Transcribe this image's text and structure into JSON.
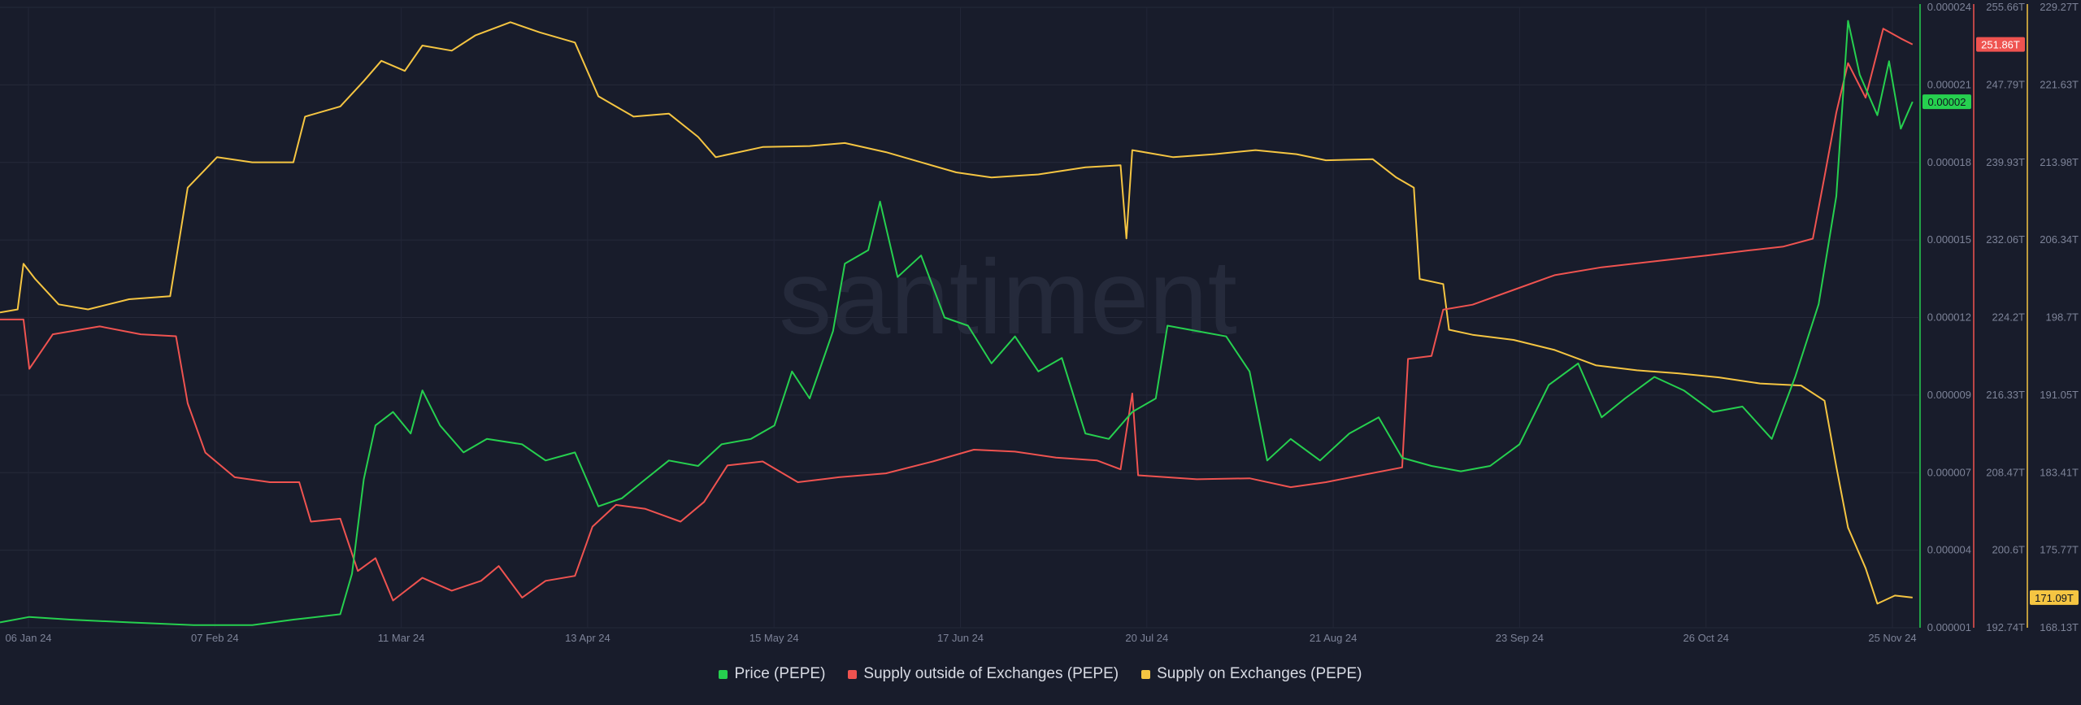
{
  "watermark": "santiment",
  "legend": {
    "items": [
      {
        "label": "Price (PEPE)",
        "color": "#26d04f"
      },
      {
        "label": "Supply outside of Exchanges (PEPE)",
        "color": "#ef5350"
      },
      {
        "label": "Supply on Exchanges (PEPE)",
        "color": "#f5c542"
      }
    ]
  },
  "chart_data": {
    "type": "line",
    "x_tick_labels": [
      "06 Jan 24",
      "07 Feb 24",
      "11 Mar 24",
      "13 Apr 24",
      "15 May 24",
      "17 Jun 24",
      "20 Jul 24",
      "21 Aug 24",
      "23 Sep 24",
      "26 Oct 24",
      "25 Nov 24"
    ],
    "xlim": [
      "2024-01-03",
      "2024-11-25"
    ],
    "grid": true,
    "legend_position": "bottom-center",
    "axes": [
      {
        "id": "price",
        "color": "#26d04f",
        "ylim": [
          1e-06,
          2.4e-05
        ],
        "tick_labels": [
          "0.000024",
          "0.000021",
          "0.000018",
          "0.000015",
          "0.000012",
          "0.000009",
          "0.000007",
          "0.000004",
          "0.000001"
        ],
        "last_value_label": "0.00002"
      },
      {
        "id": "supply_outside",
        "color": "#ef5350",
        "ylim": [
          192.74,
          255.66
        ],
        "unit": "T",
        "tick_labels": [
          "255.66T",
          "247.79T",
          "239.93T",
          "232.06T",
          "224.2T",
          "216.33T",
          "208.47T",
          "200.6T",
          "192.74T"
        ],
        "last_value_label": "251.86T"
      },
      {
        "id": "supply_on",
        "color": "#f5c542",
        "ylim": [
          168.13,
          229.27
        ],
        "unit": "T",
        "tick_labels": [
          "229.27T",
          "221.63T",
          "213.98T",
          "206.34T",
          "198.7T",
          "191.05T",
          "183.41T",
          "175.77T",
          "168.13T"
        ],
        "last_value_label": "171.09T"
      }
    ],
    "series": [
      {
        "name": "Price (PEPE)",
        "axis": "price",
        "color": "#26d04f",
        "points": [
          [
            "2024-01-03",
            1.2e-06
          ],
          [
            "2024-01-08",
            1.4e-06
          ],
          [
            "2024-01-15",
            1.3e-06
          ],
          [
            "2024-01-25",
            1.2e-06
          ],
          [
            "2024-02-05",
            1.1e-06
          ],
          [
            "2024-02-15",
            1.1e-06
          ],
          [
            "2024-02-22",
            1.3e-06
          ],
          [
            "2024-03-01",
            1.5e-06
          ],
          [
            "2024-03-03",
            3e-06
          ],
          [
            "2024-03-05",
            6.5e-06
          ],
          [
            "2024-03-07",
            8.5e-06
          ],
          [
            "2024-03-10",
            9e-06
          ],
          [
            "2024-03-13",
            8.2e-06
          ],
          [
            "2024-03-15",
            9.8e-06
          ],
          [
            "2024-03-18",
            8.5e-06
          ],
          [
            "2024-03-22",
            7.5e-06
          ],
          [
            "2024-03-26",
            8e-06
          ],
          [
            "2024-04-01",
            7.8e-06
          ],
          [
            "2024-04-05",
            7.2e-06
          ],
          [
            "2024-04-10",
            7.5e-06
          ],
          [
            "2024-04-14",
            5.5e-06
          ],
          [
            "2024-04-18",
            5.8e-06
          ],
          [
            "2024-04-22",
            6.5e-06
          ],
          [
            "2024-04-26",
            7.2e-06
          ],
          [
            "2024-05-01",
            7e-06
          ],
          [
            "2024-05-05",
            7.8e-06
          ],
          [
            "2024-05-10",
            8e-06
          ],
          [
            "2024-05-14",
            8.5e-06
          ],
          [
            "2024-05-17",
            1.05e-05
          ],
          [
            "2024-05-20",
            9.5e-06
          ],
          [
            "2024-05-24",
            1.2e-05
          ],
          [
            "2024-05-26",
            1.45e-05
          ],
          [
            "2024-05-30",
            1.5e-05
          ],
          [
            "2024-06-01",
            1.68e-05
          ],
          [
            "2024-06-04",
            1.4e-05
          ],
          [
            "2024-06-08",
            1.48e-05
          ],
          [
            "2024-06-12",
            1.25e-05
          ],
          [
            "2024-06-16",
            1.22e-05
          ],
          [
            "2024-06-20",
            1.08e-05
          ],
          [
            "2024-06-24",
            1.18e-05
          ],
          [
            "2024-06-28",
            1.05e-05
          ],
          [
            "2024-07-02",
            1.1e-05
          ],
          [
            "2024-07-06",
            8.2e-06
          ],
          [
            "2024-07-10",
            8e-06
          ],
          [
            "2024-07-14",
            9e-06
          ],
          [
            "2024-07-18",
            9.5e-06
          ],
          [
            "2024-07-20",
            1.22e-05
          ],
          [
            "2024-07-25",
            1.2e-05
          ],
          [
            "2024-07-30",
            1.18e-05
          ],
          [
            "2024-08-03",
            1.05e-05
          ],
          [
            "2024-08-06",
            7.2e-06
          ],
          [
            "2024-08-10",
            8e-06
          ],
          [
            "2024-08-15",
            7.2e-06
          ],
          [
            "2024-08-20",
            8.2e-06
          ],
          [
            "2024-08-25",
            8.8e-06
          ],
          [
            "2024-08-29",
            7.3e-06
          ],
          [
            "2024-09-03",
            7e-06
          ],
          [
            "2024-09-08",
            6.8e-06
          ],
          [
            "2024-09-13",
            7e-06
          ],
          [
            "2024-09-18",
            7.8e-06
          ],
          [
            "2024-09-23",
            1e-05
          ],
          [
            "2024-09-28",
            1.08e-05
          ],
          [
            "2024-10-02",
            8.8e-06
          ],
          [
            "2024-10-06",
            9.5e-06
          ],
          [
            "2024-10-11",
            1.03e-05
          ],
          [
            "2024-10-16",
            9.8e-06
          ],
          [
            "2024-10-21",
            9e-06
          ],
          [
            "2024-10-26",
            9.2e-06
          ],
          [
            "2024-10-31",
            8e-06
          ],
          [
            "2024-11-04",
            1.03e-05
          ],
          [
            "2024-11-08",
            1.3e-05
          ],
          [
            "2024-11-11",
            1.7e-05
          ],
          [
            "2024-11-13",
            2.35e-05
          ],
          [
            "2024-11-15",
            2.15e-05
          ],
          [
            "2024-11-18",
            2e-05
          ],
          [
            "2024-11-20",
            2.2e-05
          ],
          [
            "2024-11-22",
            1.95e-05
          ],
          [
            "2024-11-24",
            2.05e-05
          ]
        ]
      },
      {
        "name": "Supply outside of Exchanges (PEPE)",
        "axis": "supply_outside",
        "color": "#ef5350",
        "points": [
          [
            "2024-01-03",
            224.0
          ],
          [
            "2024-01-07",
            224.0
          ],
          [
            "2024-01-08",
            219.0
          ],
          [
            "2024-01-12",
            222.5
          ],
          [
            "2024-01-20",
            223.3
          ],
          [
            "2024-01-27",
            222.5
          ],
          [
            "2024-02-02",
            222.3
          ],
          [
            "2024-02-04",
            215.5
          ],
          [
            "2024-02-07",
            210.5
          ],
          [
            "2024-02-12",
            208.0
          ],
          [
            "2024-02-18",
            207.5
          ],
          [
            "2024-02-23",
            207.5
          ],
          [
            "2024-02-25",
            203.5
          ],
          [
            "2024-03-01",
            203.8
          ],
          [
            "2024-03-04",
            198.5
          ],
          [
            "2024-03-07",
            199.8
          ],
          [
            "2024-03-10",
            195.5
          ],
          [
            "2024-03-15",
            197.8
          ],
          [
            "2024-03-20",
            196.5
          ],
          [
            "2024-03-25",
            197.5
          ],
          [
            "2024-03-28",
            199.0
          ],
          [
            "2024-04-01",
            195.8
          ],
          [
            "2024-04-05",
            197.5
          ],
          [
            "2024-04-10",
            198.0
          ],
          [
            "2024-04-13",
            203.0
          ],
          [
            "2024-04-17",
            205.2
          ],
          [
            "2024-04-22",
            204.8
          ],
          [
            "2024-04-28",
            203.5
          ],
          [
            "2024-05-02",
            205.5
          ],
          [
            "2024-05-06",
            209.2
          ],
          [
            "2024-05-12",
            209.6
          ],
          [
            "2024-05-18",
            207.5
          ],
          [
            "2024-05-25",
            208.0
          ],
          [
            "2024-06-02",
            208.4
          ],
          [
            "2024-06-10",
            209.6
          ],
          [
            "2024-06-17",
            210.8
          ],
          [
            "2024-06-24",
            210.6
          ],
          [
            "2024-07-01",
            210.0
          ],
          [
            "2024-07-08",
            209.7
          ],
          [
            "2024-07-12",
            208.8
          ],
          [
            "2024-07-14",
            216.5
          ],
          [
            "2024-07-15",
            208.2
          ],
          [
            "2024-07-25",
            207.8
          ],
          [
            "2024-08-03",
            207.9
          ],
          [
            "2024-08-10",
            207.0
          ],
          [
            "2024-08-16",
            207.5
          ],
          [
            "2024-08-22",
            208.2
          ],
          [
            "2024-08-29",
            209.0
          ],
          [
            "2024-08-30",
            220.0
          ],
          [
            "2024-09-03",
            220.3
          ],
          [
            "2024-09-05",
            225.0
          ],
          [
            "2024-09-10",
            225.5
          ],
          [
            "2024-09-17",
            227.0
          ],
          [
            "2024-09-24",
            228.5
          ],
          [
            "2024-10-02",
            229.3
          ],
          [
            "2024-10-11",
            229.9
          ],
          [
            "2024-10-20",
            230.5
          ],
          [
            "2024-10-27",
            231.0
          ],
          [
            "2024-11-02",
            231.4
          ],
          [
            "2024-11-07",
            232.2
          ],
          [
            "2024-11-09",
            238.5
          ],
          [
            "2024-11-11",
            245.0
          ],
          [
            "2024-11-13",
            250.0
          ],
          [
            "2024-11-16",
            246.5
          ],
          [
            "2024-11-19",
            253.5
          ],
          [
            "2024-11-22",
            252.5
          ],
          [
            "2024-11-24",
            251.9
          ]
        ]
      },
      {
        "name": "Supply on Exchanges (PEPE)",
        "axis": "supply_on",
        "color": "#f5c542",
        "points": [
          [
            "2024-01-03",
            199.2
          ],
          [
            "2024-01-06",
            199.5
          ],
          [
            "2024-01-07",
            204.0
          ],
          [
            "2024-01-09",
            202.5
          ],
          [
            "2024-01-13",
            200.0
          ],
          [
            "2024-01-18",
            199.5
          ],
          [
            "2024-01-25",
            200.5
          ],
          [
            "2024-02-01",
            200.8
          ],
          [
            "2024-02-04",
            211.5
          ],
          [
            "2024-02-09",
            214.5
          ],
          [
            "2024-02-15",
            214.0
          ],
          [
            "2024-02-22",
            214.0
          ],
          [
            "2024-02-24",
            218.5
          ],
          [
            "2024-03-01",
            219.5
          ],
          [
            "2024-03-05",
            222.0
          ],
          [
            "2024-03-08",
            224.0
          ],
          [
            "2024-03-12",
            223.0
          ],
          [
            "2024-03-15",
            225.5
          ],
          [
            "2024-03-20",
            225.0
          ],
          [
            "2024-03-24",
            226.5
          ],
          [
            "2024-03-30",
            227.8
          ],
          [
            "2024-04-04",
            226.8
          ],
          [
            "2024-04-10",
            225.8
          ],
          [
            "2024-04-14",
            220.5
          ],
          [
            "2024-04-20",
            218.5
          ],
          [
            "2024-04-26",
            218.8
          ],
          [
            "2024-05-01",
            216.5
          ],
          [
            "2024-05-04",
            214.5
          ],
          [
            "2024-05-12",
            215.5
          ],
          [
            "2024-05-20",
            215.6
          ],
          [
            "2024-05-26",
            215.9
          ],
          [
            "2024-06-02",
            215.0
          ],
          [
            "2024-06-08",
            214.0
          ],
          [
            "2024-06-14",
            213.0
          ],
          [
            "2024-06-20",
            212.5
          ],
          [
            "2024-06-28",
            212.8
          ],
          [
            "2024-07-06",
            213.5
          ],
          [
            "2024-07-12",
            213.7
          ],
          [
            "2024-07-13",
            206.5
          ],
          [
            "2024-07-14",
            215.2
          ],
          [
            "2024-07-21",
            214.5
          ],
          [
            "2024-07-28",
            214.8
          ],
          [
            "2024-08-04",
            215.2
          ],
          [
            "2024-08-11",
            214.8
          ],
          [
            "2024-08-16",
            214.2
          ],
          [
            "2024-08-24",
            214.3
          ],
          [
            "2024-08-28",
            212.5
          ],
          [
            "2024-08-31",
            211.5
          ],
          [
            "2024-09-01",
            202.5
          ],
          [
            "2024-09-05",
            202.0
          ],
          [
            "2024-09-06",
            197.5
          ],
          [
            "2024-09-10",
            197.0
          ],
          [
            "2024-09-17",
            196.5
          ],
          [
            "2024-09-24",
            195.5
          ],
          [
            "2024-10-01",
            194.0
          ],
          [
            "2024-10-08",
            193.5
          ],
          [
            "2024-10-15",
            193.2
          ],
          [
            "2024-10-22",
            192.8
          ],
          [
            "2024-10-29",
            192.2
          ],
          [
            "2024-11-05",
            192.0
          ],
          [
            "2024-11-09",
            190.5
          ],
          [
            "2024-11-11",
            184.0
          ],
          [
            "2024-11-13",
            178.0
          ],
          [
            "2024-11-16",
            174.0
          ],
          [
            "2024-11-18",
            170.5
          ],
          [
            "2024-11-21",
            171.3
          ],
          [
            "2024-11-24",
            171.1
          ]
        ]
      }
    ]
  }
}
